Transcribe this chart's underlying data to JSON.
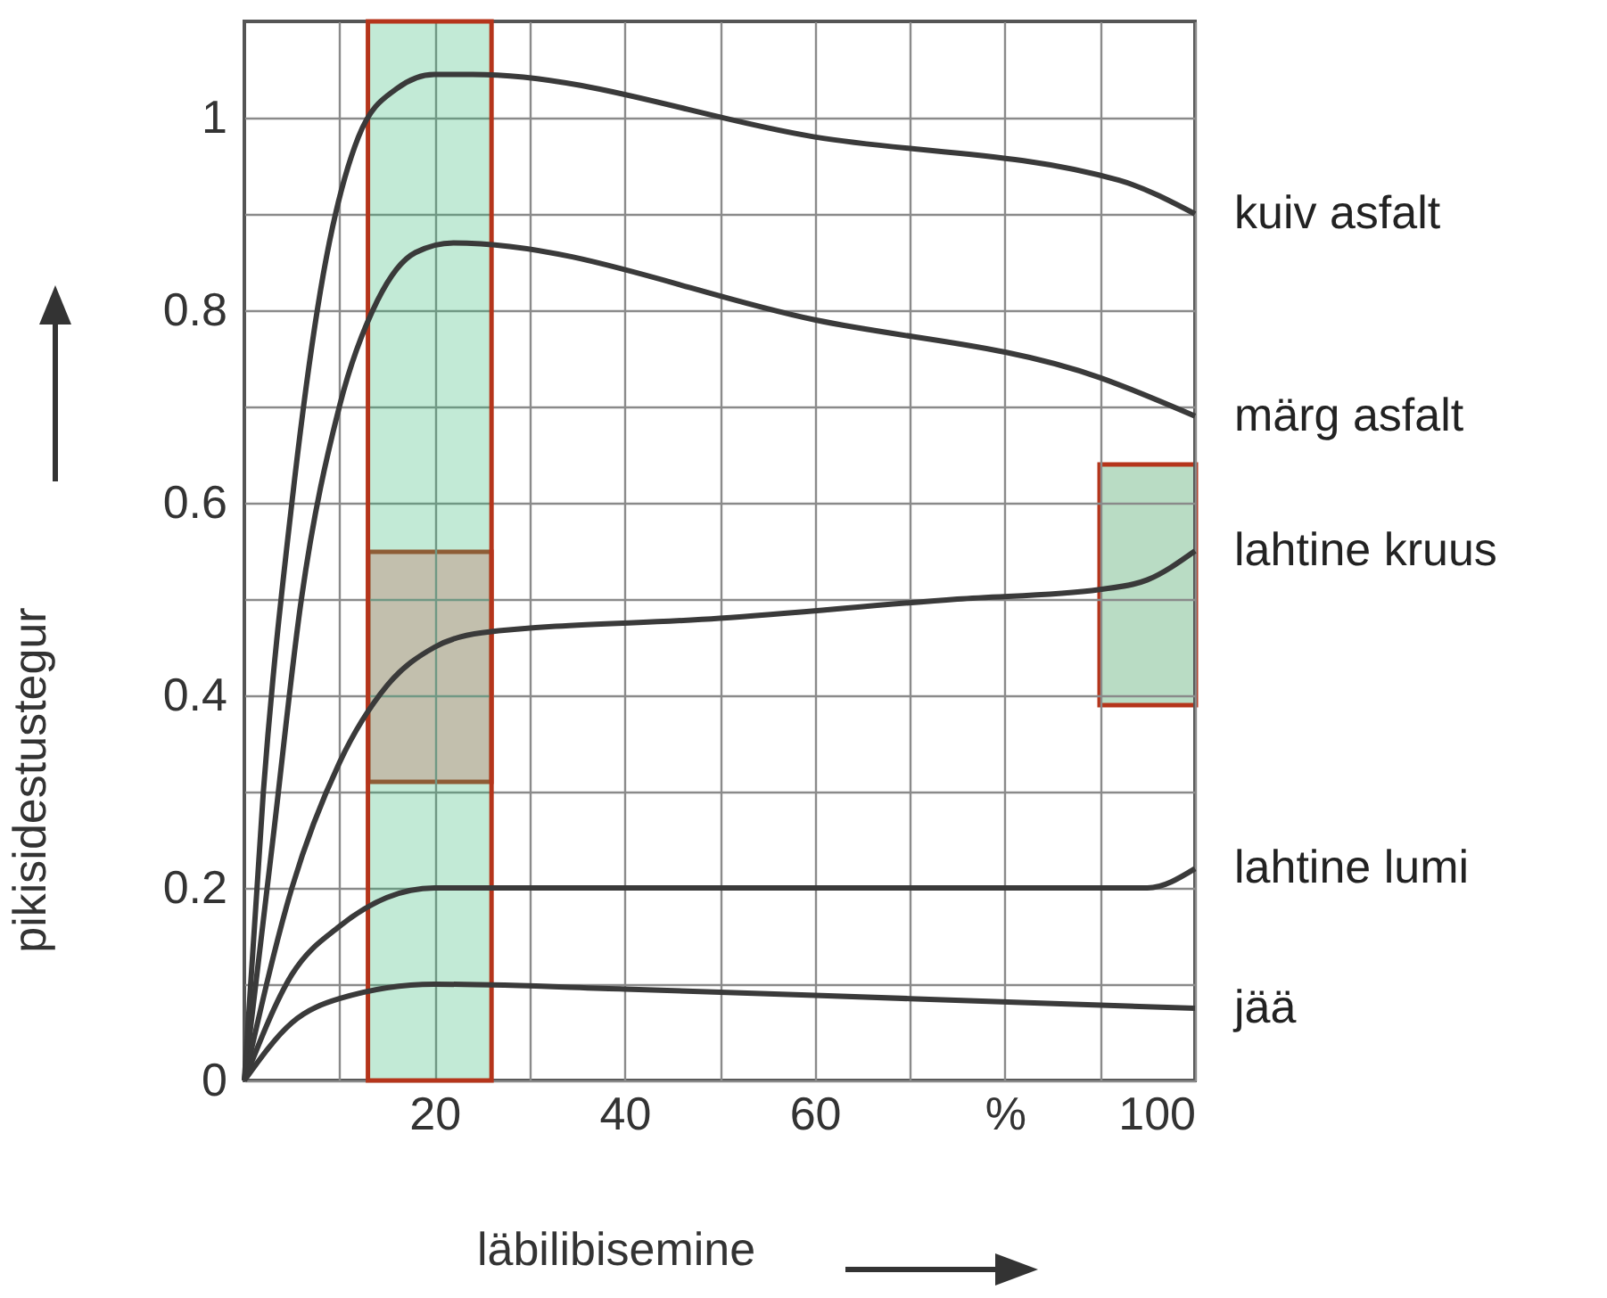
{
  "chart_data": {
    "type": "line",
    "xlabel": "läbilibisemine",
    "ylabel": "pikisidestustegur",
    "xlim": [
      0,
      100
    ],
    "ylim": [
      0,
      1.1
    ],
    "xticks": [
      {
        "value": 10,
        "label": null
      },
      20,
      {
        "value": 30,
        "label": null
      },
      40,
      {
        "value": 50,
        "label": null
      },
      60,
      {
        "value": 70,
        "label": null
      },
      {
        "value": 80,
        "label": "%"
      },
      {
        "value": 90,
        "label": null
      },
      100
    ],
    "yticks": [
      0,
      {
        "value": 0.1,
        "label": null
      },
      0.2,
      {
        "value": 0.3,
        "label": null
      },
      0.4,
      {
        "value": 0.5,
        "label": null
      },
      0.6,
      {
        "value": 0.7,
        "label": null
      },
      0.8,
      {
        "value": 0.9,
        "label": null
      },
      1
    ],
    "grid": true,
    "line_style": "solid",
    "series": [
      {
        "name": "kuiv asfalt",
        "color": "#3a3a3a",
        "x": [
          0,
          2,
          5,
          8,
          12,
          16,
          20,
          24,
          60,
          92,
          100
        ],
        "values": [
          0,
          0.3,
          0.6,
          0.82,
          0.98,
          1.03,
          1.045,
          1.045,
          0.98,
          0.935,
          0.9
        ]
      },
      {
        "name": "märg asfalt",
        "color": "#3a3a3a",
        "x": [
          0,
          3,
          6,
          10,
          14,
          18,
          22,
          60,
          90,
          100
        ],
        "values": [
          0,
          0.25,
          0.5,
          0.7,
          0.81,
          0.86,
          0.87,
          0.79,
          0.73,
          0.69
        ]
      },
      {
        "name": "lahtine kruus",
        "color": "#3a3a3a",
        "x": [
          0,
          5,
          10,
          15,
          20,
          25,
          50,
          75,
          90,
          95,
          100
        ],
        "values": [
          0,
          0.2,
          0.33,
          0.41,
          0.45,
          0.465,
          0.48,
          0.5,
          0.51,
          0.52,
          0.55
        ]
      },
      {
        "name": "lahtine lumi",
        "color": "#3a3a3a",
        "x": [
          0,
          5,
          10,
          15,
          20,
          30,
          90,
          95,
          100
        ],
        "values": [
          0,
          0.11,
          0.16,
          0.19,
          0.2,
          0.2,
          0.2,
          0.2,
          0.22
        ]
      },
      {
        "name": "jää",
        "color": "#3a3a3a",
        "x": [
          0,
          5,
          10,
          20,
          40,
          70,
          100
        ],
        "values": [
          0,
          0.06,
          0.085,
          0.1,
          0.095,
          0.085,
          0.075
        ]
      }
    ],
    "bands": [
      {
        "axis": "x",
        "from": 13,
        "to": 26,
        "color": "#c2ead6"
      }
    ]
  }
}
